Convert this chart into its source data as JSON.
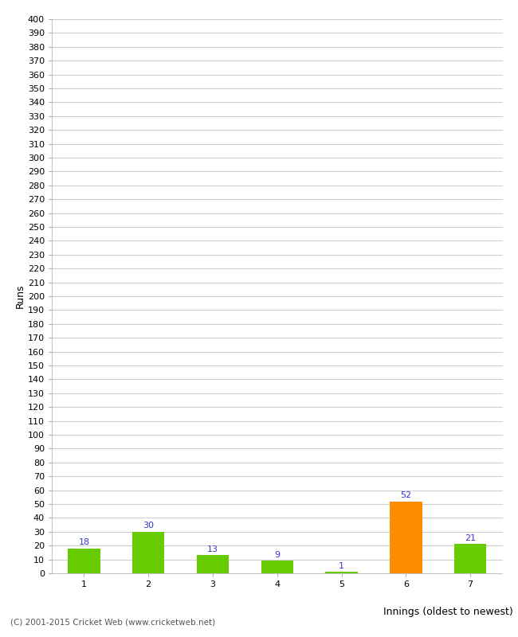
{
  "categories": [
    "1",
    "2",
    "3",
    "4",
    "5",
    "6",
    "7"
  ],
  "values": [
    18,
    30,
    13,
    9,
    1,
    52,
    21
  ],
  "bar_colors": [
    "#66cc00",
    "#66cc00",
    "#66cc00",
    "#66cc00",
    "#66cc00",
    "#ff8c00",
    "#66cc00"
  ],
  "ylabel": "Runs",
  "xlabel": "Innings (oldest to newest)",
  "ylim": [
    0,
    400
  ],
  "ytick_step": 10,
  "ytick_max": 400,
  "label_color": "#3333cc",
  "footer": "(C) 2001-2015 Cricket Web (www.cricketweb.net)",
  "background_color": "#ffffff",
  "grid_color": "#cccccc",
  "bar_width": 0.5,
  "tick_fontsize": 8,
  "axis_label_fontsize": 9,
  "label_fontsize": 8
}
